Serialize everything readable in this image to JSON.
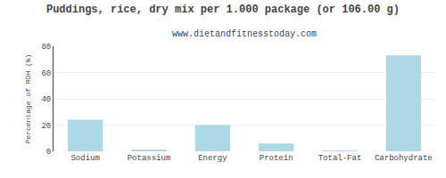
{
  "chart_data": {
    "type": "bar",
    "title": "Puddings, rice, dry mix per 1.000 package (or 106.00 g)",
    "subtitle": "www.dietandfitnesstoday.com",
    "categories": [
      "Sodium",
      "Potassium",
      "Energy",
      "Protein",
      "Total-Fat",
      "Carbohydrate"
    ],
    "values": [
      24,
      1,
      20,
      6,
      0.3,
      73
    ],
    "color": "#add8e6",
    "ylabel": "Percentage of RDH (%)",
    "ylim": [
      0,
      80
    ],
    "yticks": [
      0,
      20,
      40,
      60,
      80
    ],
    "grid": true
  }
}
